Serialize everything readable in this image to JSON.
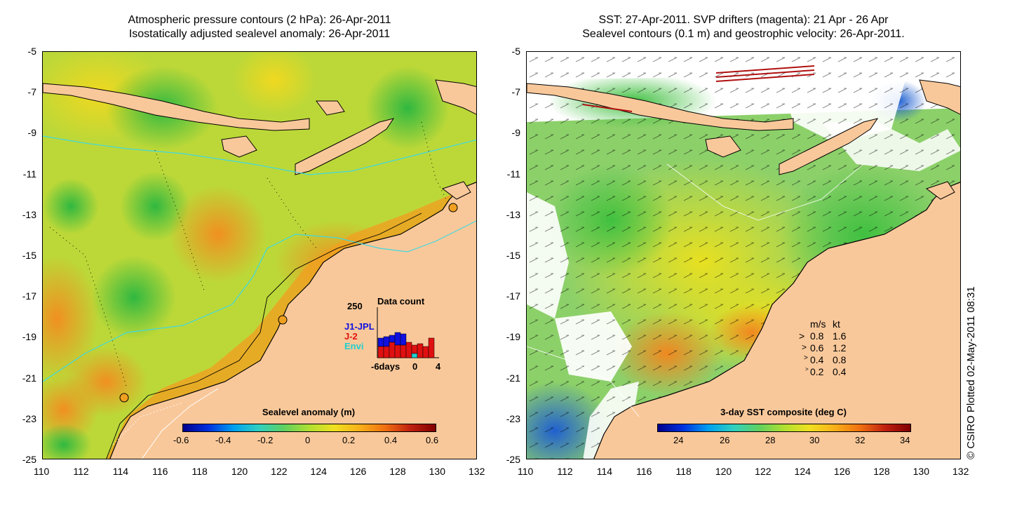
{
  "left_panel": {
    "title_line1": "Atmospheric pressure contours (2 hPa): 26-Apr-2011",
    "title_line2": "Isostatically adjusted sealevel anomaly: 26-Apr-2011",
    "colorbar": {
      "title": "Sealevel anomaly (m)",
      "ticks": [
        "-0.6",
        "-0.4",
        "-0.2",
        "0",
        "0.2",
        "0.4",
        "0.6"
      ]
    },
    "inset": {
      "title": "Data count",
      "ymax_label": "250",
      "x_labels": [
        "-6days",
        "0",
        "4"
      ],
      "legend": [
        {
          "label": "J1-JPL",
          "color": "#1010e0"
        },
        {
          "label": "J-2",
          "color": "#e01010"
        },
        {
          "label": "Envi",
          "color": "#20d0d0"
        }
      ]
    }
  },
  "right_panel": {
    "title_line1": "SST: 27-Apr-2011. SVP drifters (magenta): 21 Apr - 26 Apr",
    "title_line2": "Sealevel contours (0.1 m) and geostrophic velocity: 26-Apr-2011.",
    "colorbar": {
      "title": "3-day SST composite (deg C)",
      "ticks": [
        "24",
        "26",
        "28",
        "30",
        "32",
        "34"
      ]
    },
    "velocity_legend": {
      "header_ms": "m/s",
      "header_kt": "kt",
      "rows": [
        {
          "ms": "0.8",
          "kt": "1.6"
        },
        {
          "ms": "0.6",
          "kt": "1.2"
        },
        {
          "ms": "0.4",
          "kt": "0.8"
        },
        {
          "ms": "0.2",
          "kt": "0.4"
        }
      ]
    }
  },
  "axes": {
    "x_ticks": [
      "110",
      "112",
      "114",
      "116",
      "118",
      "120",
      "122",
      "124",
      "126",
      "128",
      "130",
      "132"
    ],
    "y_ticks": [
      "-5",
      "-7",
      "-9",
      "-11",
      "-13",
      "-15",
      "-17",
      "-19",
      "-21",
      "-23",
      "-25"
    ]
  },
  "credit": "© CSIRO Plotted 02-May-2011 08:31",
  "colors": {
    "land": "#f9c89a",
    "coast": "#000000",
    "bathy_cyan": "#40d8e0",
    "sla_background": "#c8dc30"
  }
}
